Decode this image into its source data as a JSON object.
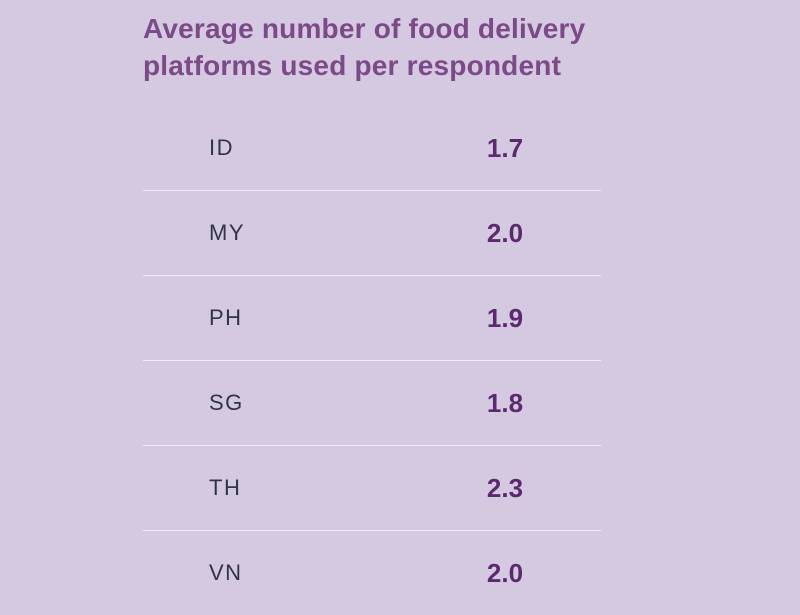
{
  "chart_data": {
    "type": "table",
    "title": "Average number of food delivery platforms used per respondent",
    "categories": [
      "ID",
      "MY",
      "PH",
      "SG",
      "TH",
      "VN"
    ],
    "values": [
      1.7,
      2.0,
      1.9,
      1.8,
      2.3,
      2.0
    ],
    "value_labels": [
      "1.7",
      "2.0",
      "1.9",
      "1.8",
      "2.3",
      "2.0"
    ]
  },
  "colors": {
    "background": "#d5c8e1",
    "title": "#7b4a87",
    "value": "#5b2a6e",
    "label": "#2f3545",
    "divider": "#eee9f3"
  }
}
